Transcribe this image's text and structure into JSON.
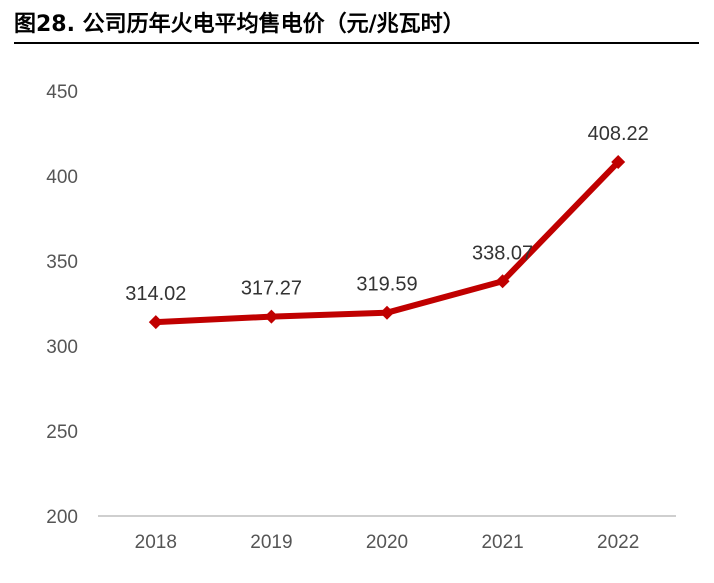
{
  "title": "图28. 公司历年火电平均售电价（元/兆瓦时）",
  "chart_data": {
    "type": "line",
    "title": "图28. 公司历年火电平均售电价（元/兆瓦时）",
    "xlabel": "",
    "ylabel": "",
    "categories": [
      "2018",
      "2019",
      "2020",
      "2021",
      "2022"
    ],
    "values": [
      314.02,
      317.27,
      319.59,
      338.07,
      408.22
    ],
    "data_labels": [
      "314.02",
      "317.27",
      "319.59",
      "338.07",
      "408.22"
    ],
    "ylim": [
      200,
      450
    ],
    "yticks": [
      200,
      250,
      300,
      350,
      400,
      450
    ],
    "grid": false,
    "legend": "none",
    "colors": {
      "line": "#C00000",
      "marker": "#C00000",
      "axis": "#BFBFBF"
    }
  }
}
